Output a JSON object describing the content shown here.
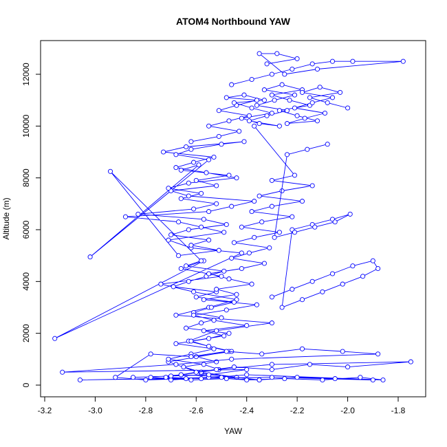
{
  "chart_data": {
    "type": "line",
    "title": "ATOM4 Northbound YAW",
    "xlabel": "YAW",
    "ylabel": "Altitude (m)",
    "xlim": [
      -3.2,
      -1.7
    ],
    "ylim": [
      0,
      13000
    ],
    "x_ticks": [
      -3.2,
      -3.0,
      -2.8,
      -2.6,
      -2.4,
      -2.2,
      -2.0,
      -1.8
    ],
    "x_tick_labels": [
      "-3.2",
      "-3.0",
      "-2.8",
      "-2.6",
      "-2.4",
      "-2.2",
      "-2.0",
      "-1.8"
    ],
    "y_ticks": [
      0,
      2000,
      4000,
      6000,
      8000,
      10000,
      12000
    ],
    "y_tick_labels": [
      "0",
      "2000",
      "4000",
      "6000",
      "8000",
      "10000",
      "12000"
    ],
    "grid": false,
    "series": [
      {
        "color": "#0000ff",
        "marker": "open-circle",
        "x": [
          -2.35,
          -2.58,
          -2.71,
          -2.47,
          -2.63,
          -2.52,
          -2.3,
          -2.68,
          -2.55,
          -2.44,
          -2.61,
          -2.74,
          -2.5,
          -2.66,
          -2.57,
          -3.16,
          -2.42,
          -2.62,
          -2.71,
          -2.49,
          -2.58,
          -2.67,
          -2.88,
          -2.55,
          -2.46,
          -2.37,
          -2.63,
          -2.7,
          -2.52,
          -2.6,
          -2.47,
          -2.66,
          -2.59,
          -3.02,
          -2.55,
          -2.68,
          -2.62,
          -2.5,
          -2.41,
          -2.64,
          -2.73,
          -2.53,
          -2.61,
          -2.68,
          -2.56,
          -2.44,
          -2.63,
          -2.71,
          -2.58,
          -2.66,
          -2.52,
          -2.61,
          -2.83,
          -2.57,
          -2.48,
          -2.63,
          -2.7,
          -2.55,
          -2.62,
          -2.51,
          -2.67,
          -2.94,
          -2.58,
          -2.64,
          -2.49,
          -2.56,
          -2.63,
          -2.69,
          -2.52,
          -2.6,
          -2.45,
          -2.54,
          -2.61,
          -2.5,
          -2.58,
          -2.64,
          -2.47,
          -2.55,
          -2.68,
          -2.53,
          -2.62,
          -2.71,
          -2.57,
          -2.51,
          -2.66,
          -2.44,
          -2.58,
          -2.65,
          -2.52,
          -2.6,
          -2.46,
          -2.55,
          -2.62,
          -2.49,
          -2.57,
          -2.4,
          -2.53,
          -2.61,
          -2.48,
          -2.36,
          -2.57,
          -2.44,
          -2.52,
          -2.38,
          -2.47,
          -2.55,
          -2.42,
          -2.33,
          -2.46,
          -2.39,
          -2.31,
          -2.45,
          -2.37,
          -2.27,
          -2.42,
          -2.34,
          -2.22,
          -2.38,
          -2.3,
          -2.18,
          -2.35,
          -2.26,
          -2.14,
          -2.3,
          -2.21,
          -2.37
        ],
        "y": [
          200,
          450,
          900,
          1300,
          1700,
          2100,
          2400,
          2700,
          3000,
          3300,
          3600,
          3900,
          4200,
          4500,
          4800,
          1800,
          5100,
          5300,
          5600,
          5900,
          6100,
          6300,
          6500,
          6700,
          6900,
          7100,
          7300,
          7500,
          7700,
          7900,
          8100,
          8300,
          8500,
          4950,
          8700,
          8900,
          9100,
          9300,
          9400,
          9200,
          9000,
          8800,
          8600,
          8400,
          8200,
          8000,
          7800,
          7600,
          7400,
          7200,
          7000,
          6800,
          6600,
          6400,
          6200,
          6000,
          5800,
          5600,
          5400,
          5200,
          5000,
          8250,
          4800,
          4600,
          4400,
          4200,
          4000,
          3800,
          3600,
          3400,
          3200,
          3000,
          2800,
          2600,
          2400,
          2200,
          2000,
          1800,
          1600,
          1400,
          1200,
          1000,
          800,
          600,
          400,
          300,
          500,
          700,
          900,
          1100,
          1300,
          1500,
          1700,
          1900,
          2100,
          2300,
          2500,
          2700,
          2900,
          3100,
          3300,
          3500,
          3700,
          3900,
          4100,
          4300,
          4500,
          4700,
          4900,
          5100,
          5300,
          5500,
          5700,
          5900,
          6100,
          6300,
          6500,
          6700,
          6900,
          7100,
          7300,
          7500,
          7700,
          7900,
          8100,
          10000
        ]
      },
      {
        "color": "#0000ff",
        "marker": "open-circle",
        "x": [
          -2.62,
          -2.51,
          -2.43,
          -2.55,
          -2.47,
          -2.39,
          -2.51,
          -2.44,
          -2.36,
          -2.48,
          -2.41,
          -2.33,
          -2.45,
          -2.38,
          -2.3,
          -2.42,
          -2.35,
          -2.27,
          -2.39,
          -2.32,
          -2.24,
          -2.36,
          -2.29,
          -2.21,
          -2.33,
          -2.26,
          -2.18,
          -2.3,
          -2.23,
          -2.15,
          -2.27,
          -2.2,
          -2.12,
          -2.24,
          -2.17,
          -2.09,
          -2.21,
          -2.14,
          -2.06,
          -2.18,
          -2.11,
          -2.03,
          -2.15,
          -2.08,
          -2.0
        ],
        "y": [
          9400,
          9600,
          9800,
          10000,
          10200,
          10400,
          10600,
          10800,
          11000,
          11100,
          11200,
          11000,
          10900,
          10700,
          10500,
          10300,
          10100,
          10000,
          10200,
          10400,
          10600,
          10800,
          11000,
          11200,
          11400,
          11600,
          11400,
          11200,
          11000,
          10800,
          10600,
          10400,
          10200,
          10100,
          10300,
          10500,
          10700,
          10900,
          11100,
          11300,
          11500,
          11300,
          11100,
          10900,
          10700
        ]
      },
      {
        "color": "#0000ff",
        "marker": "open-circle",
        "x": [
          -2.46,
          -2.38,
          -2.3,
          -2.22,
          -2.14,
          -2.06,
          -1.98,
          -1.78,
          -2.12,
          -2.25,
          -2.35,
          -2.28,
          -2.2,
          -2.32
        ],
        "y": [
          11600,
          11800,
          12000,
          12200,
          12400,
          12500,
          12500,
          12500,
          12200,
          12000,
          12800,
          12800,
          12600,
          12400
        ]
      },
      {
        "color": "#0000ff",
        "marker": "open-circle",
        "x": [
          -2.7,
          -2.55,
          -2.4,
          -2.25,
          -2.1,
          -1.95,
          -1.86,
          -2.4,
          -2.58,
          -2.72,
          -2.6,
          -2.45,
          -2.3,
          -2.15,
          -2.0,
          -1.75,
          -2.3,
          -2.52,
          -2.66,
          -2.78,
          -2.62,
          -2.48,
          -2.35,
          -2.2,
          -2.05,
          -1.9,
          -2.3,
          -3.06,
          -2.5,
          -2.64,
          -2.8,
          -2.92,
          -2.78,
          -2.62,
          -2.48,
          -2.34,
          -2.18,
          -2.02,
          -1.88,
          -2.46,
          -2.68,
          -3.13,
          -2.4,
          -2.55,
          -2.7,
          -2.85
        ],
        "y": [
          200,
          300,
          200,
          250,
          200,
          300,
          200,
          400,
          250,
          300,
          500,
          700,
          600,
          800,
          700,
          900,
          800,
          600,
          400,
          300,
          200,
          250,
          200,
          300,
          250,
          200,
          300,
          200,
          300,
          250,
          200,
          300,
          1200,
          1100,
          1300,
          1200,
          1400,
          1300,
          1200,
          1000,
          800,
          500,
          600,
          400,
          350,
          300
        ]
      },
      {
        "color": "#0000ff",
        "marker": "open-circle",
        "x": [
          -2.3,
          -2.22,
          -2.14,
          -2.06,
          -1.98,
          -1.9,
          -1.88,
          -1.94,
          -2.02,
          -2.1,
          -2.18,
          -2.26,
          -2.22,
          -2.14,
          -2.06,
          -1.99,
          -2.05,
          -2.13,
          -2.21,
          -2.29,
          -2.24,
          -2.16,
          -2.08
        ],
        "y": [
          3400,
          3700,
          4000,
          4300,
          4600,
          4800,
          4500,
          4200,
          3900,
          3600,
          3300,
          3000,
          6000,
          6200,
          6400,
          6600,
          6300,
          6100,
          5900,
          5700,
          8900,
          9100,
          9300
        ]
      }
    ]
  }
}
